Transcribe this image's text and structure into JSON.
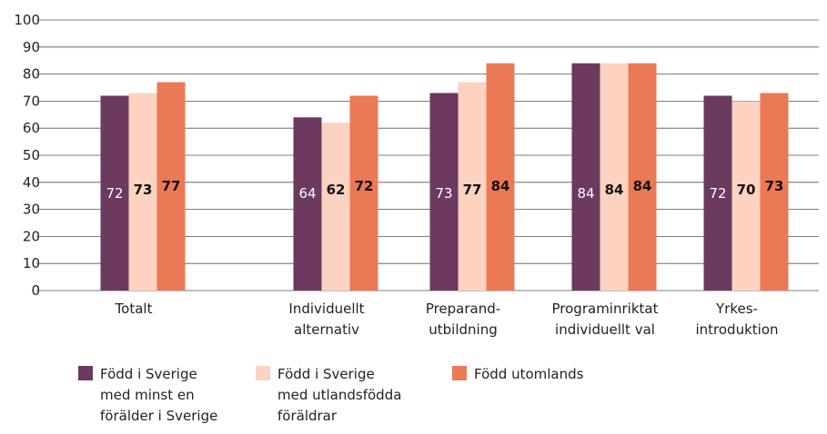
{
  "chart_data": {
    "type": "bar",
    "categories": [
      "Totalt",
      "Individuellt\nalternativ",
      "Preparand-\nutbildning",
      "Programinriktat\nindividuellt val",
      "Yrkes-\nintroduktion"
    ],
    "series": [
      {
        "name": "Född i Sverige\nmed minst en\nförälder i Sverige",
        "color": "#6b3a5e",
        "values": [
          72,
          64,
          73,
          84,
          72
        ]
      },
      {
        "name": "Född i Sverige\nmed utlandsfödda\nföräldrar",
        "color": "#fbd3c0",
        "values": [
          73,
          62,
          77,
          84,
          70
        ]
      },
      {
        "name": "Född utomlands",
        "color": "#eb7955",
        "values": [
          77,
          72,
          84,
          84,
          73
        ]
      }
    ],
    "ylim": [
      0,
      100
    ],
    "yticks": [
      0,
      10,
      20,
      30,
      40,
      50,
      60,
      70,
      80,
      90,
      100
    ],
    "grid": true
  }
}
